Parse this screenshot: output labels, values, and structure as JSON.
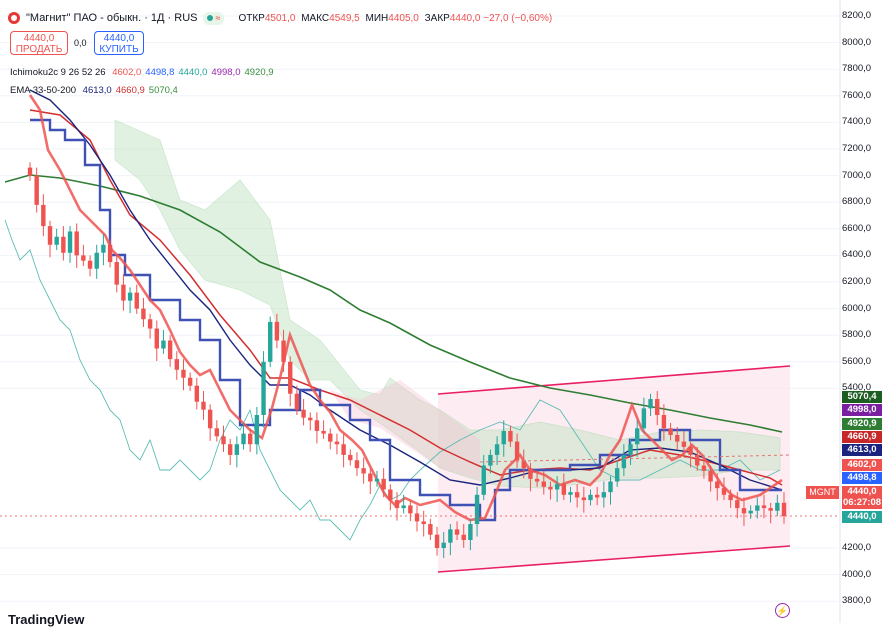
{
  "header": {
    "title": "\"Магнит\" ПАО - обыкн. · 1Д · RUS",
    "ohlc": [
      {
        "label": "ОТКР",
        "value": "4501,0"
      },
      {
        "label": "МАКС",
        "value": "4549,5"
      },
      {
        "label": "МИН",
        "value": "4405,0"
      },
      {
        "label": "ЗАКР",
        "value": "4440,0 −27,0 (−0,60%)"
      }
    ]
  },
  "trade": {
    "sell_price": "4440,0",
    "sell_label": "ПРОДАТЬ",
    "spread": "0,0",
    "buy_price": "4440,0",
    "buy_label": "КУПИТЬ"
  },
  "indicators": {
    "ichimoku_name": "Ichimoku2c 9 26 52 26",
    "ichimoku_values": [
      {
        "text": "4602,0",
        "color": "#ef5350"
      },
      {
        "text": "4498,8",
        "color": "#2962ff"
      },
      {
        "text": "4440,0",
        "color": "#26a69a"
      },
      {
        "text": "4998,0",
        "color": "#9c27b0"
      },
      {
        "text": "4920,9",
        "color": "#388e3c"
      }
    ],
    "ema_name": "EMA 33-50-200",
    "ema_values": [
      {
        "text": "4613,0",
        "color": "#1a237e"
      },
      {
        "text": "4660,9",
        "color": "#d32f2f"
      },
      {
        "text": "5070,4",
        "color": "#388e3c"
      }
    ]
  },
  "axis": {
    "ticks": [
      "8200,0",
      "8000,0",
      "7800,0",
      "7600,0",
      "7400,0",
      "7200,0",
      "7000,0",
      "6800,0",
      "6600,0",
      "6400,0",
      "6200,0",
      "6000,0",
      "5800,0",
      "5600,0",
      "5400,0",
      "4200,0",
      "4000,0",
      "3800,0"
    ]
  },
  "price_labels": [
    {
      "text": "5070,4",
      "color": "#1b5e20"
    },
    {
      "text": "4998,0",
      "color": "#7b1fa2"
    },
    {
      "text": "4920,9",
      "color": "#2e7d32"
    },
    {
      "text": "4660,9",
      "color": "#c62828"
    },
    {
      "text": "4613,0",
      "color": "#1a237e"
    },
    {
      "text": "4602,0",
      "color": "#ef5350"
    },
    {
      "text": "4498,8",
      "color": "#2962ff"
    },
    {
      "text": "4440,0",
      "color": "#ef5350"
    },
    {
      "text": "06:27:08",
      "color": "#ef5350"
    },
    {
      "text": "4440,0",
      "color": "#26a69a"
    }
  ],
  "ticker_badge": "MGNT",
  "brand": "TradingView",
  "chart_data": {
    "type": "candlestick",
    "ylim": [
      3750,
      8250
    ],
    "closes": [
      7000,
      6780,
      6620,
      6480,
      6540,
      6420,
      6580,
      6400,
      6360,
      6300,
      6420,
      6480,
      6350,
      6180,
      6060,
      6120,
      6000,
      5920,
      5850,
      5700,
      5760,
      5620,
      5540,
      5480,
      5420,
      5300,
      5240,
      5100,
      5040,
      4980,
      4900,
      4980,
      5060,
      4980,
      5200,
      5600,
      5900,
      5760,
      5600,
      5360,
      5240,
      5180,
      5160,
      5080,
      5060,
      5000,
      4980,
      4900,
      4860,
      4800,
      4760,
      4700,
      4720,
      4640,
      4560,
      4500,
      4520,
      4460,
      4400,
      4380,
      4300,
      4200,
      4240,
      4340,
      4300,
      4260,
      4380,
      4600,
      4820,
      4900,
      4980,
      5080,
      5000,
      4860,
      4800,
      4720,
      4700,
      4660,
      4640,
      4680,
      4600,
      4620,
      4580,
      4560,
      4600,
      4580,
      4620,
      4700,
      4800,
      4900,
      4980,
      5100,
      5250,
      5320,
      5200,
      5100,
      5050,
      5000,
      4960,
      4900,
      4820,
      4780,
      4700,
      4650,
      4600,
      4560,
      4500,
      4460,
      4480,
      4520,
      4500,
      4480,
      4540,
      4440
    ],
    "ema200": {
      "name": "EMA 200",
      "values": [
        [
          0,
          7000
        ],
        [
          10,
          6950
        ],
        [
          20,
          6800
        ],
        [
          30,
          6500
        ],
        [
          40,
          6300
        ],
        [
          50,
          5900
        ],
        [
          60,
          5700
        ],
        [
          70,
          5450
        ],
        [
          80,
          5300
        ],
        [
          90,
          5200
        ],
        [
          100,
          5050
        ],
        [
          113,
          4990
        ]
      ]
    }
  }
}
